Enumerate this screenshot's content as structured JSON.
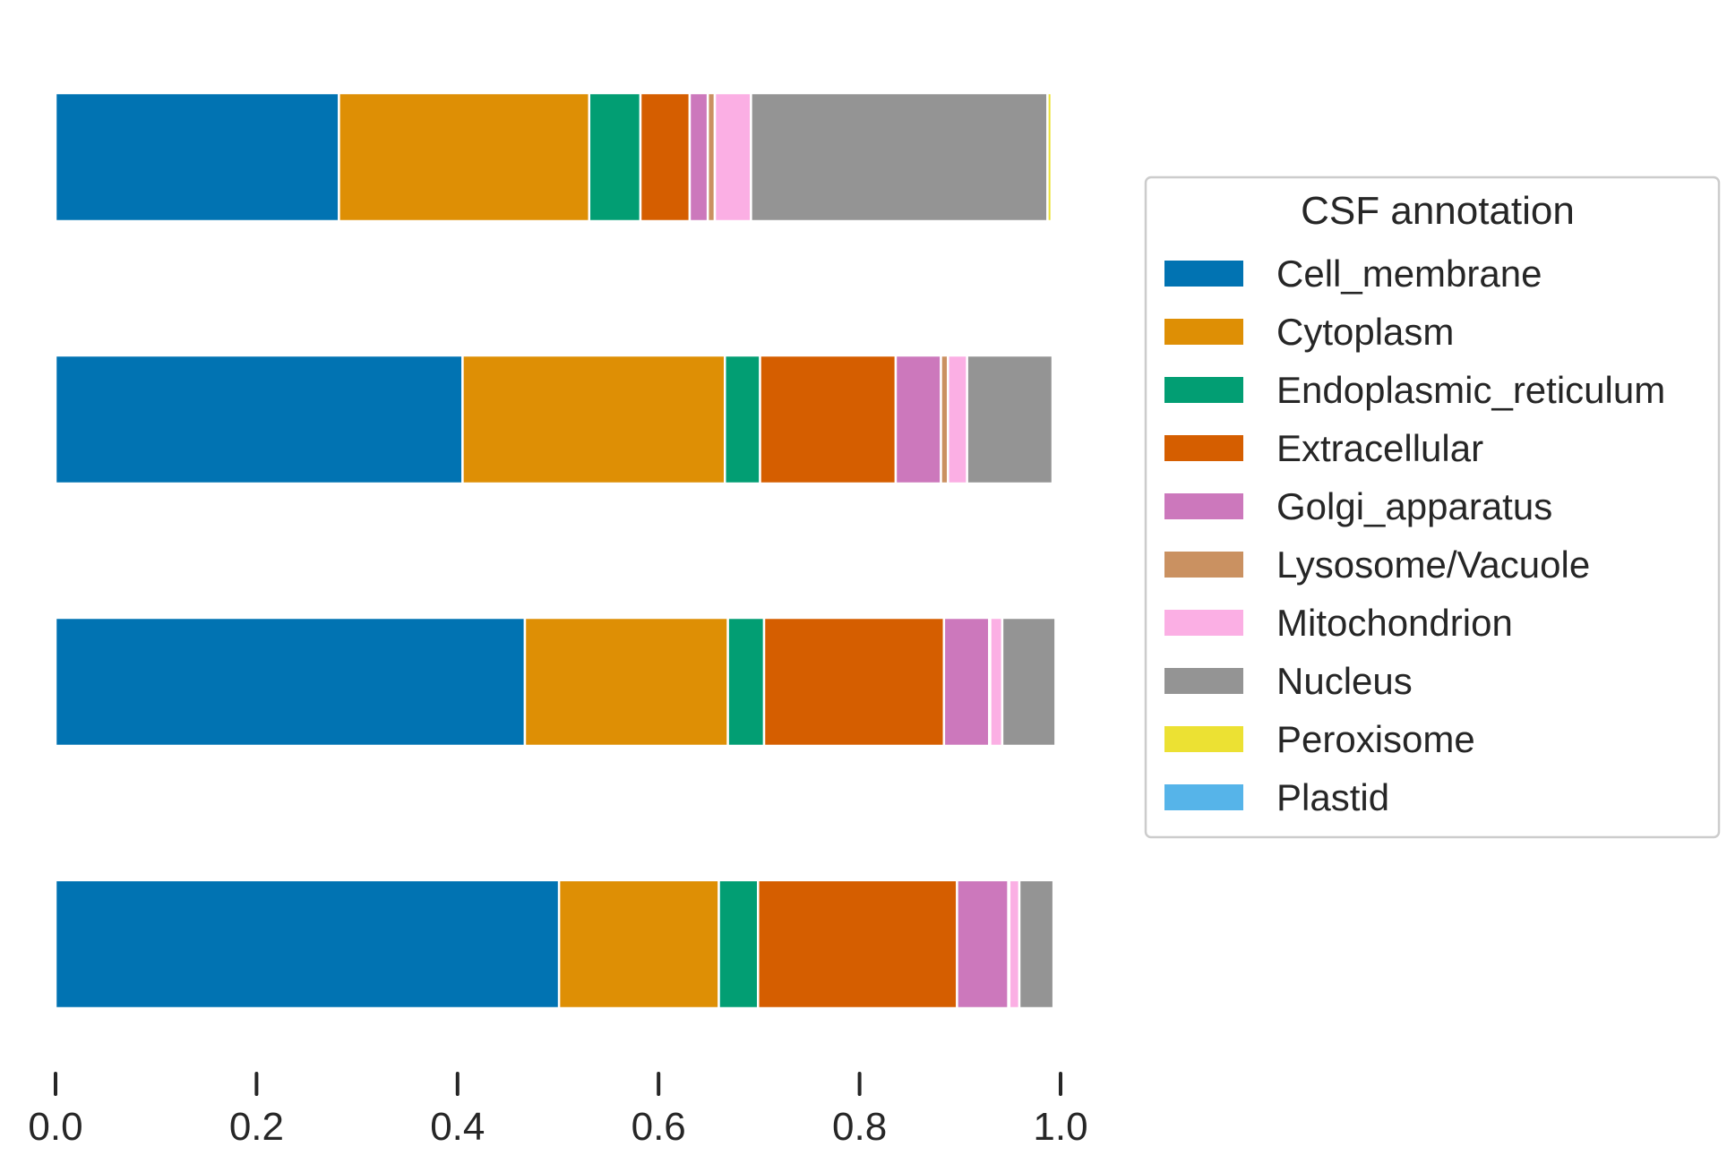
{
  "chart_data": {
    "type": "bar",
    "orientation": "horizontal",
    "stacked": true,
    "xlim": [
      0.0,
      1.0
    ],
    "xticks": [
      "0.0",
      "0.2",
      "0.4",
      "0.6",
      "0.8",
      "1.0"
    ],
    "grid": false,
    "legend": {
      "title": "CSF annotation",
      "placement": "right"
    },
    "rows": 4,
    "series": [
      {
        "name": "Cell_membrane",
        "color": "#0173b2",
        "values": [
          0.282,
          0.405,
          0.467,
          0.501
        ]
      },
      {
        "name": "Cytoplasm",
        "color": "#de8f05",
        "values": [
          0.249,
          0.261,
          0.202,
          0.159
        ]
      },
      {
        "name": "Endoplasmic_reticulum",
        "color": "#029e73",
        "values": [
          0.051,
          0.035,
          0.036,
          0.039
        ]
      },
      {
        "name": "Extracellular",
        "color": "#d55e00",
        "values": [
          0.049,
          0.135,
          0.179,
          0.198
        ]
      },
      {
        "name": "Golgi_apparatus",
        "color": "#cc78bc",
        "values": [
          0.018,
          0.045,
          0.045,
          0.051
        ]
      },
      {
        "name": "Lysosome/Vacuole",
        "color": "#ca9161",
        "values": [
          0.007,
          0.007,
          0.001,
          0.001
        ]
      },
      {
        "name": "Mitochondrion",
        "color": "#fbafe4",
        "values": [
          0.036,
          0.019,
          0.012,
          0.01
        ]
      },
      {
        "name": "Nucleus",
        "color": "#949494",
        "values": [
          0.295,
          0.085,
          0.053,
          0.034
        ]
      },
      {
        "name": "Peroxisome",
        "color": "#ece133",
        "values": [
          0.004,
          0.0,
          0.0,
          0.0
        ]
      },
      {
        "name": "Plastid",
        "color": "#56b4e9",
        "values": [
          0.0,
          0.0,
          0.0,
          0.0
        ]
      }
    ]
  }
}
